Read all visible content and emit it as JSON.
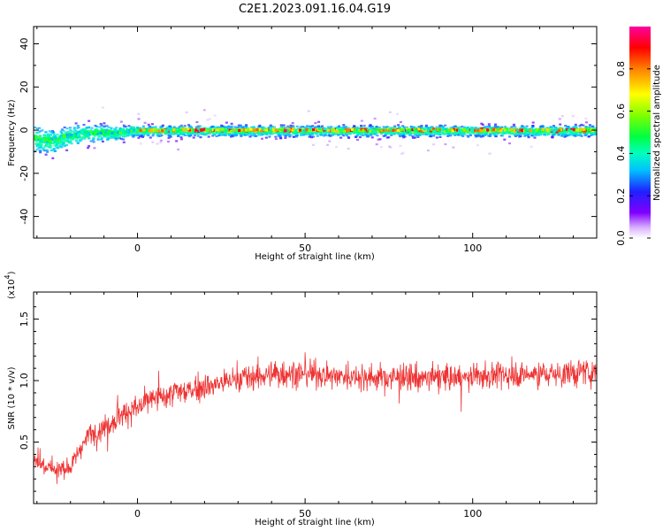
{
  "title": "C2E1.2023.091.16.04.G19",
  "chart_data": [
    {
      "type": "heatmap",
      "xlabel": "Height of straight line (km)",
      "ylabel": "Frequency (Hz)",
      "xlim": [
        -31,
        137
      ],
      "ylim": [
        -50,
        48
      ],
      "xticks": [
        "0",
        "50",
        "100"
      ],
      "xtick_values": [
        0,
        50,
        100
      ],
      "yticks": [
        "40",
        "20",
        "0",
        "-20",
        "-40"
      ],
      "ytick_values": [
        40,
        20,
        0,
        -20,
        -40
      ],
      "ridge": {
        "description_value": 0,
        "points": [
          [
            -30,
            -4
          ],
          [
            -26,
            -5
          ],
          [
            -22,
            -3
          ],
          [
            -18,
            -2
          ],
          [
            -14,
            -1
          ],
          [
            -10,
            -1
          ],
          [
            -6,
            -1
          ],
          [
            -2,
            0
          ],
          [
            5,
            0
          ],
          [
            15,
            0
          ],
          [
            25,
            0
          ],
          [
            35,
            0
          ],
          [
            45,
            0
          ],
          [
            55,
            0
          ],
          [
            65,
            0
          ],
          [
            75,
            0
          ],
          [
            85,
            0
          ],
          [
            95,
            0
          ],
          [
            105,
            0
          ],
          [
            115,
            0
          ],
          [
            125,
            0
          ],
          [
            135,
            0
          ]
        ]
      },
      "colorbar": {
        "label": "Normalized spectral amplitude",
        "range": [
          0,
          1
        ],
        "ticks": [
          "0.0",
          "0.2",
          "0.4",
          "0.6",
          "0.8"
        ],
        "tick_values": [
          0.0,
          0.2,
          0.4,
          0.6,
          0.8
        ]
      }
    },
    {
      "type": "line",
      "xlabel": "Height of straight line (km)",
      "ylabel": "SNR (10 * v/v)",
      "multiplier": "(x10",
      "multiplier_exp": "4",
      "multiplier_close": ")",
      "xlim": [
        -31,
        137
      ],
      "ylim": [
        0,
        1.72
      ],
      "xticks": [
        "0",
        "50",
        "100"
      ],
      "xtick_values": [
        0,
        50,
        100
      ],
      "yticks": [
        "0.5",
        "1.0",
        "1.5"
      ],
      "ytick_values": [
        0.5,
        1.0,
        1.5
      ],
      "series_color": "#ee3333",
      "trend": [
        [
          -31,
          0.35
        ],
        [
          -25,
          0.28
        ],
        [
          -20,
          0.3
        ],
        [
          -15,
          0.55
        ],
        [
          -10,
          0.62
        ],
        [
          -5,
          0.72
        ],
        [
          0,
          0.78
        ],
        [
          5,
          0.85
        ],
        [
          10,
          0.9
        ],
        [
          15,
          0.92
        ],
        [
          20,
          0.95
        ],
        [
          25,
          0.98
        ],
        [
          30,
          1.02
        ],
        [
          40,
          1.05
        ],
        [
          50,
          1.06
        ],
        [
          60,
          1.04
        ],
        [
          70,
          1.03
        ],
        [
          80,
          1.02
        ],
        [
          90,
          1.02
        ],
        [
          100,
          1.03
        ],
        [
          110,
          1.05
        ],
        [
          120,
          1.05
        ],
        [
          130,
          1.06
        ],
        [
          137,
          1.07
        ]
      ]
    }
  ]
}
